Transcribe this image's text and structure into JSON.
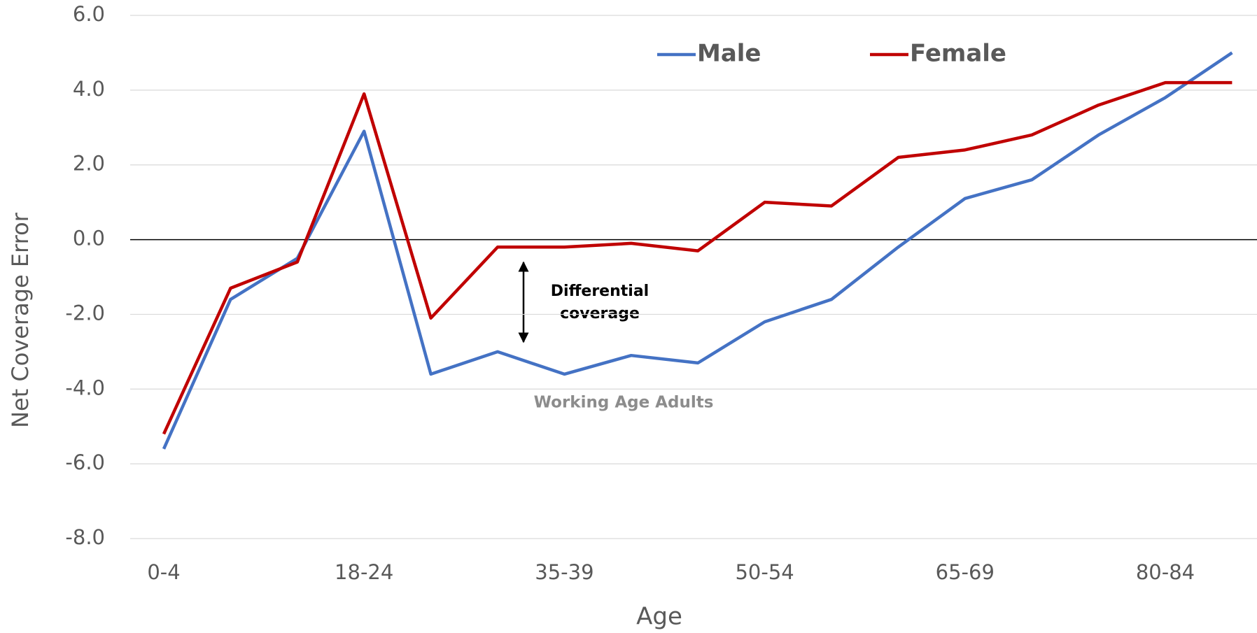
{
  "chart_data": {
    "type": "line",
    "x_label": "Age",
    "y_label": "Net Coverage Error",
    "categories": [
      "0-4",
      null,
      null,
      "18-24",
      null,
      null,
      "35-39",
      null,
      null,
      "50-54",
      null,
      null,
      "65-69",
      null,
      null,
      "80-84",
      null
    ],
    "series": [
      {
        "name": "Male",
        "color": "#4472c4",
        "values": [
          -5.6,
          -1.6,
          -0.5,
          2.9,
          -3.6,
          -3.0,
          -3.6,
          -3.1,
          -3.3,
          -2.2,
          -1.6,
          -0.2,
          1.1,
          1.6,
          2.8,
          3.8,
          5.0
        ]
      },
      {
        "name": "Female",
        "color": "#c00000",
        "values": [
          -5.2,
          -1.3,
          -0.6,
          3.9,
          -2.1,
          -0.2,
          -0.2,
          -0.1,
          -0.3,
          1.0,
          0.9,
          2.2,
          2.4,
          2.8,
          3.6,
          4.2,
          4.2
        ]
      }
    ],
    "ylim": [
      -8,
      6
    ],
    "yticks": [
      {
        "value": -8,
        "label": "-8.0"
      },
      {
        "value": -6,
        "label": "-6.0"
      },
      {
        "value": -4,
        "label": "-4.0"
      },
      {
        "value": -2,
        "label": "-2.0"
      },
      {
        "value": 0,
        "label": "0.0"
      },
      {
        "value": 2,
        "label": "2.0"
      },
      {
        "value": 4,
        "label": "4.0"
      },
      {
        "value": 6,
        "label": "6.0"
      }
    ],
    "grid": true,
    "legend": "top",
    "annotations": {
      "differential": [
        "Differential",
        "coverage"
      ],
      "group": "Working Age Adults"
    }
  }
}
